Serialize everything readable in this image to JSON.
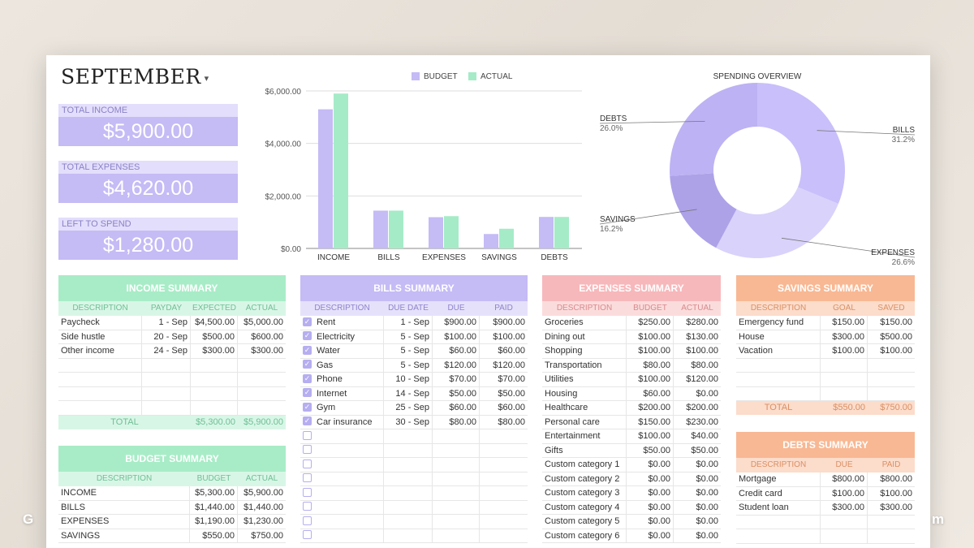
{
  "month": {
    "title": "SEPTEMBER",
    "caret": "▾"
  },
  "kpis": [
    {
      "label": "TOTAL INCOME",
      "value": "$5,900.00"
    },
    {
      "label": "TOTAL EXPENSES",
      "value": "$4,620.00"
    },
    {
      "label": "LEFT TO SPEND",
      "value": "$1,280.00"
    }
  ],
  "colors": {
    "budget": "#c5bbf5",
    "actual": "#a5ebc8",
    "income_header": "#a8ecc7",
    "income_sub": "#d8f6e6",
    "bills_header": "#c5bbf5",
    "bills_sub": "#e6e1fb",
    "expenses_header": "#f7b8bb",
    "expenses_sub": "#fbdcdc",
    "savings_header": "#f8b893",
    "savings_sub": "#fcdccb"
  },
  "chart_data": [
    {
      "type": "bar",
      "categories": [
        "INCOME",
        "BILLS",
        "EXPENSES",
        "SAVINGS",
        "DEBTS"
      ],
      "series": [
        {
          "name": "BUDGET",
          "values": [
            5300,
            1440,
            1190,
            550,
            1200
          ]
        },
        {
          "name": "ACTUAL",
          "values": [
            5900,
            1440,
            1230,
            750,
            1200
          ]
        }
      ],
      "ylim": [
        0,
        6000
      ],
      "yticks": [
        "$0.00",
        "$2,000.00",
        "$4,000.00",
        "$6,000.00"
      ],
      "ytick_values": [
        0,
        2000,
        4000,
        6000
      ],
      "legend": "top",
      "grid": true
    },
    {
      "type": "pie",
      "title": "SPENDING OVERVIEW",
      "slices": [
        {
          "label": "BILLS",
          "value": 31.2,
          "pct": "31.2%",
          "color": "#c9bffa"
        },
        {
          "label": "EXPENSES",
          "value": 26.6,
          "pct": "26.6%",
          "color": "#d9d2fb"
        },
        {
          "label": "SAVINGS",
          "value": 16.2,
          "pct": "16.2%",
          "color": "#ada2e8"
        },
        {
          "label": "DEBTS",
          "value": 26.0,
          "pct": "26.0%",
          "color": "#bdb2f3"
        }
      ],
      "donut": true
    }
  ],
  "income": {
    "title": "INCOME SUMMARY",
    "headers": [
      "DESCRIPTION",
      "PAYDAY",
      "EXPECTED",
      "ACTUAL"
    ],
    "rows": [
      [
        "Paycheck",
        "1 - Sep",
        "$4,500.00",
        "$5,000.00"
      ],
      [
        "Side hustle",
        "20 - Sep",
        "$500.00",
        "$600.00"
      ],
      [
        "Other income",
        "24 - Sep",
        "$300.00",
        "$300.00"
      ]
    ],
    "total": [
      "TOTAL",
      "$5,300.00",
      "$5,900.00"
    ]
  },
  "budget": {
    "title": "BUDGET SUMMARY",
    "headers": [
      "DESCRIPTION",
      "BUDGET",
      "ACTUAL"
    ],
    "rows": [
      [
        "INCOME",
        "$5,300.00",
        "$5,900.00"
      ],
      [
        "BILLS",
        "$1,440.00",
        "$1,440.00"
      ],
      [
        "EXPENSES",
        "$1,190.00",
        "$1,230.00"
      ],
      [
        "SAVINGS",
        "$550.00",
        "$750.00"
      ]
    ]
  },
  "bills": {
    "title": "BILLS SUMMARY",
    "headers": [
      "DESCRIPTION",
      "DUE DATE",
      "DUE",
      "PAID"
    ],
    "rows": [
      [
        "Rent",
        "1 - Sep",
        "$900.00",
        "$900.00"
      ],
      [
        "Electricity",
        "5 - Sep",
        "$100.00",
        "$100.00"
      ],
      [
        "Water",
        "5 - Sep",
        "$60.00",
        "$60.00"
      ],
      [
        "Gas",
        "5 - Sep",
        "$120.00",
        "$120.00"
      ],
      [
        "Phone",
        "10 - Sep",
        "$70.00",
        "$70.00"
      ],
      [
        "Internet",
        "14 - Sep",
        "$50.00",
        "$50.00"
      ],
      [
        "Gym",
        "25 - Sep",
        "$60.00",
        "$60.00"
      ],
      [
        "Car insurance",
        "30 - Sep",
        "$80.00",
        "$80.00"
      ]
    ]
  },
  "expenses": {
    "title": "EXPENSES SUMMARY",
    "headers": [
      "DESCRIPTION",
      "BUDGET",
      "ACTUAL"
    ],
    "rows": [
      [
        "Groceries",
        "$250.00",
        "$280.00"
      ],
      [
        "Dining out",
        "$100.00",
        "$130.00"
      ],
      [
        "Shopping",
        "$100.00",
        "$100.00"
      ],
      [
        "Transportation",
        "$80.00",
        "$80.00"
      ],
      [
        "Utilities",
        "$100.00",
        "$120.00"
      ],
      [
        "Housing",
        "$60.00",
        "$0.00"
      ],
      [
        "Healthcare",
        "$200.00",
        "$200.00"
      ],
      [
        "Personal care",
        "$150.00",
        "$230.00"
      ],
      [
        "Entertainment",
        "$100.00",
        "$40.00"
      ],
      [
        "Gifts",
        "$50.00",
        "$50.00"
      ],
      [
        "Custom category 1",
        "$0.00",
        "$0.00"
      ],
      [
        "Custom category 2",
        "$0.00",
        "$0.00"
      ],
      [
        "Custom category 3",
        "$0.00",
        "$0.00"
      ],
      [
        "Custom category 4",
        "$0.00",
        "$0.00"
      ],
      [
        "Custom category 5",
        "$0.00",
        "$0.00"
      ],
      [
        "Custom category 6",
        "$0.00",
        "$0.00"
      ]
    ]
  },
  "savings": {
    "title": "SAVINGS SUMMARY",
    "headers": [
      "DESCRIPTION",
      "GOAL",
      "SAVED"
    ],
    "rows": [
      [
        "Emergency fund",
        "$150.00",
        "$150.00"
      ],
      [
        "House",
        "$300.00",
        "$500.00"
      ],
      [
        "Vacation",
        "$100.00",
        "$100.00"
      ]
    ],
    "total": [
      "TOTAL",
      "$550.00",
      "$750.00"
    ]
  },
  "debts": {
    "title": "DEBTS SUMMARY",
    "headers": [
      "DESCRIPTION",
      "DUE",
      "PAID"
    ],
    "rows": [
      [
        "Mortgage",
        "$800.00",
        "$800.00"
      ],
      [
        "Credit card",
        "$100.00",
        "$100.00"
      ],
      [
        "Student loan",
        "$300.00",
        "$300.00"
      ]
    ]
  },
  "watermark": {
    "left": "G",
    "right": "m"
  }
}
